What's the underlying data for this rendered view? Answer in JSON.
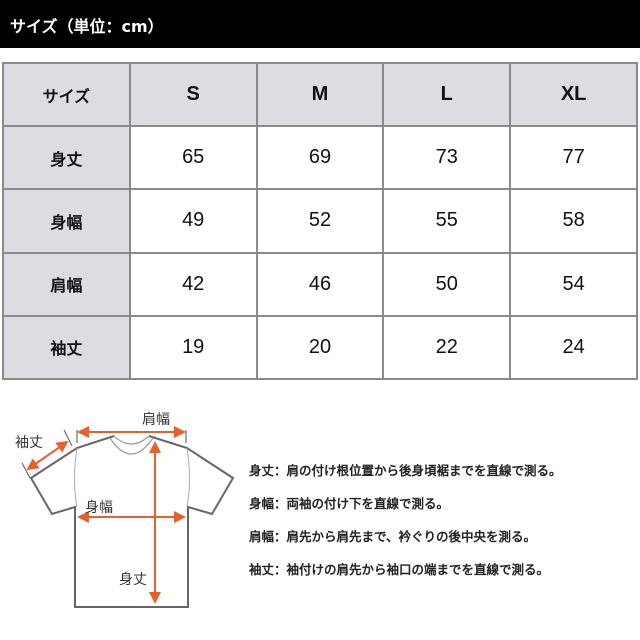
{
  "title": "サイズ（単位：cm）",
  "table": {
    "headers": [
      "サイズ",
      "S",
      "M",
      "L",
      "XL"
    ],
    "rows": [
      {
        "label": "身丈",
        "values": [
          "65",
          "69",
          "73",
          "77"
        ]
      },
      {
        "label": "身幅",
        "values": [
          "49",
          "52",
          "55",
          "58"
        ]
      },
      {
        "label": "肩幅",
        "values": [
          "42",
          "46",
          "50",
          "54"
        ]
      },
      {
        "label": "袖丈",
        "values": [
          "19",
          "20",
          "22",
          "24"
        ]
      }
    ]
  },
  "diagram": {
    "labels": {
      "shoulder": "肩幅",
      "sleeve": "袖丈",
      "width": "身幅",
      "length": "身丈"
    },
    "arrow_color": "#e8612c"
  },
  "descriptions": [
    "身丈：肩の付け根位置から後身頃裾までを直線で測る。",
    "身幅：両袖の付け下を直線で測る。",
    "肩幅：肩先から肩先まで、衿ぐりの後中央を測る。",
    "袖丈：袖付けの肩先から袖口の端までを直線で測る。"
  ]
}
